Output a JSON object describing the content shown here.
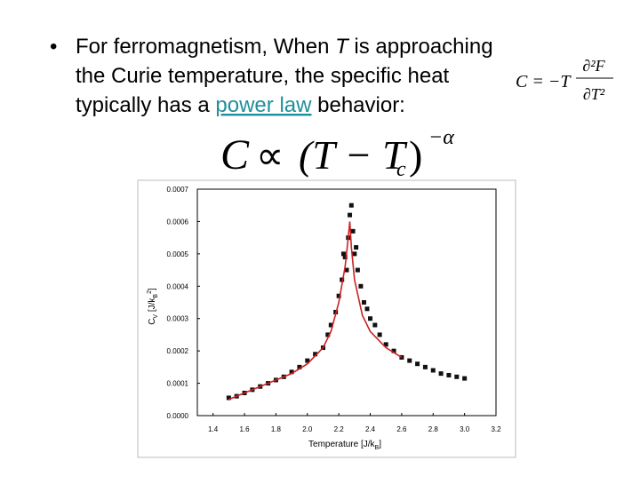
{
  "slide": {
    "bullet": "•",
    "line1_a": "For ferromagnetism, When ",
    "line1_t": "T",
    "line1_b": " is approaching",
    "line2": "the Curie temperature, the specific heat",
    "line3_a": "typically has a ",
    "line3_link": "power law",
    "line3_b": " behavior:",
    "heat_formula": {
      "lhs": "C = −T",
      "num": "∂²F",
      "den": "∂T²"
    },
    "power_law": {
      "c": "C",
      "prop": "∝",
      "open": "(T − T",
      "sub": "c",
      "close": ")",
      "exp": "−α"
    }
  },
  "chart_data": {
    "type": "scatter",
    "xlabel": "Temperature [J/k",
    "xlabel_sub": "B",
    "xlabel_end": "]",
    "ylabel": "C",
    "ylabel_sub": "V",
    "ylabel_mid": " [J/k",
    "ylabel_sub2": "B",
    "ylabel_sup": "2",
    "ylabel_end": "]",
    "xlim": [
      1.3,
      3.2
    ],
    "ylim": [
      0,
      0.0007
    ],
    "xticks": [
      1.4,
      1.6,
      1.8,
      {
        "value": 2,
        "label": "2.0"
      },
      2.2,
      2.4,
      2.6,
      2.8,
      {
        "value": 3,
        "label": "3.0"
      },
      3.2
    ],
    "yticks": [
      {
        "value": 0,
        "label": "0.0000"
      },
      0.0001,
      0.0002,
      0.0003,
      0.0004,
      0.0005,
      0.0006,
      0.0007
    ],
    "series": [
      {
        "type": "scatter",
        "color": "#111111",
        "x": [
          1.5,
          1.55,
          1.6,
          1.65,
          1.7,
          1.75,
          1.8,
          1.85,
          1.9,
          1.95,
          2.0,
          2.05,
          2.1,
          2.13,
          2.15,
          2.18,
          2.2,
          2.22,
          2.23,
          2.24,
          2.25,
          2.26,
          2.27,
          2.28,
          2.29,
          2.3,
          2.31,
          2.32,
          2.34,
          2.36,
          2.38,
          2.4,
          2.43,
          2.46,
          2.5,
          2.55,
          2.6,
          2.65,
          2.7,
          2.75,
          2.8,
          2.85,
          2.9,
          2.95,
          3.0
        ],
        "values": [
          5.5e-05,
          6e-05,
          7e-05,
          8e-05,
          9e-05,
          0.0001,
          0.00011,
          0.00012,
          0.000135,
          0.00015,
          0.00017,
          0.00019,
          0.00021,
          0.00025,
          0.00028,
          0.00032,
          0.00037,
          0.00042,
          0.0005,
          0.00049,
          0.00045,
          0.00055,
          0.00062,
          0.00065,
          0.00057,
          0.0005,
          0.00052,
          0.00045,
          0.0004,
          0.00035,
          0.00033,
          0.0003,
          0.00028,
          0.00025,
          0.00022,
          0.0002,
          0.00018,
          0.00017,
          0.00016,
          0.00015,
          0.00014,
          0.00013,
          0.000125,
          0.00012,
          0.000115
        ]
      },
      {
        "type": "line",
        "color": "#cc2222",
        "x": [
          1.5,
          1.7,
          1.9,
          2.0,
          2.1,
          2.15,
          2.2,
          2.24,
          2.26,
          2.27,
          2.28,
          2.3,
          2.35,
          2.4,
          2.5,
          2.6
        ],
        "values": [
          5e-05,
          9e-05,
          0.00013,
          0.00016,
          0.00021,
          0.00026,
          0.00035,
          0.00046,
          0.00055,
          0.0006,
          0.00052,
          0.00042,
          0.00031,
          0.00026,
          0.00021,
          0.00018
        ]
      }
    ]
  }
}
